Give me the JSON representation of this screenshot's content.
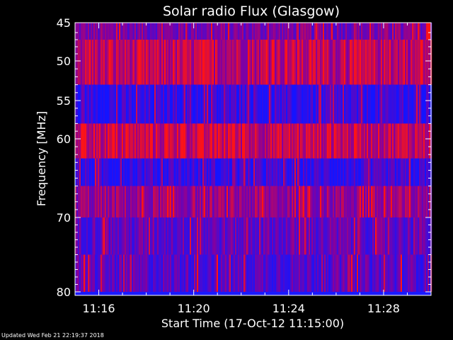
{
  "chart_data": {
    "type": "heatmap",
    "title": "Solar radio Flux (Glasgow)",
    "xlabel": "Start Time (17-Oct-12 11:15:00)",
    "ylabel": "Frequency [MHz]",
    "x_ticks": [
      "11:16",
      "11:20",
      "11:24",
      "11:28"
    ],
    "y_ticks": [
      45,
      50,
      55,
      60,
      70,
      80
    ],
    "x_range": [
      "11:15:00",
      "11:30:00"
    ],
    "y_range": [
      45,
      80
    ],
    "y_axis_scale": "nonlinear (compressed toward high frequencies)",
    "frequency_bands": [
      {
        "from": 45,
        "to": 47,
        "level": 0.45
      },
      {
        "from": 47,
        "to": 53,
        "level": 0.7
      },
      {
        "from": 53,
        "to": 58,
        "level": 0.12
      },
      {
        "from": 58,
        "to": 62.5,
        "level": 0.75
      },
      {
        "from": 62.5,
        "to": 66,
        "level": 0.15
      },
      {
        "from": 66,
        "to": 70,
        "level": 0.55
      },
      {
        "from": 70,
        "to": 75,
        "level": 0.35
      },
      {
        "from": 75,
        "to": 80,
        "level": 0.3
      }
    ],
    "colors": {
      "low": "#0000ff",
      "mid": "#8000a0",
      "high": "#ff0000"
    },
    "grid": false,
    "legend": "none"
  },
  "footer_text": "Updated Wed Feb 21 22:19:37 2018"
}
